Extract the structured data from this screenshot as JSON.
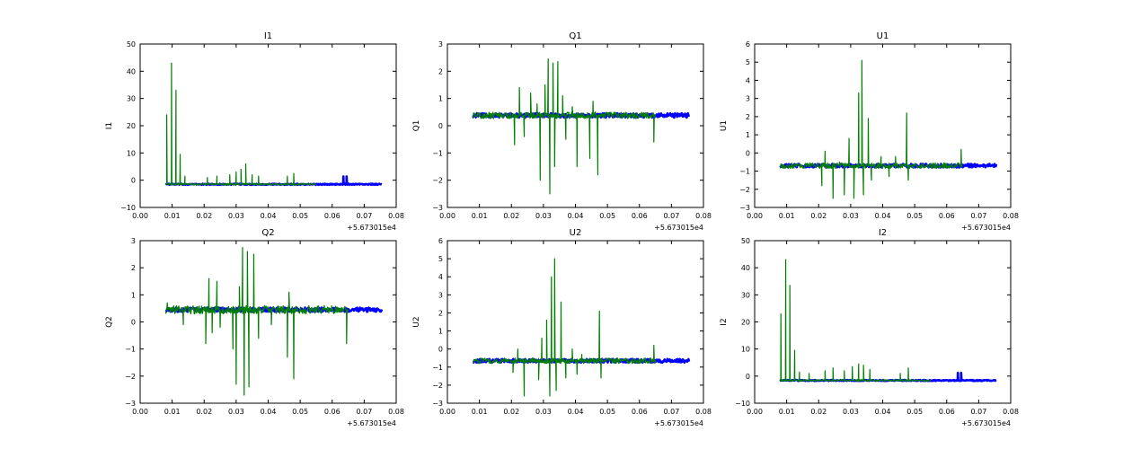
{
  "colors": {
    "blue": "#0000ff",
    "green": "#008000"
  },
  "chart_data": [
    {
      "type": "line",
      "title": "I1",
      "ylabel": "I1",
      "x_offset_label": "+5.673015e4",
      "xlim": [
        0.0,
        0.08
      ],
      "ylim": [
        -10,
        50
      ],
      "xticks": [
        "0.00",
        "0.01",
        "0.02",
        "0.03",
        "0.04",
        "0.05",
        "0.06",
        "0.07",
        "0.08"
      ],
      "yticks": [
        "−10",
        "0",
        "10",
        "20",
        "30",
        "40",
        "50"
      ],
      "series": [
        {
          "color": "blue",
          "base": -1.5,
          "noise": 0.2,
          "spikes": [
            [
              0.0635,
              1.4
            ],
            [
              0.0645,
              1.4
            ]
          ]
        },
        {
          "color": "green",
          "base": -1.5,
          "noise": 0.3,
          "x_end": 0.055,
          "spikes": [
            [
              0.0083,
              24
            ],
            [
              0.0098,
              43
            ],
            [
              0.0112,
              33
            ],
            [
              0.0125,
              9.5
            ],
            [
              0.014,
              1.5
            ],
            [
              0.021,
              1
            ],
            [
              0.024,
              1.5
            ],
            [
              0.028,
              2
            ],
            [
              0.03,
              3
            ],
            [
              0.0315,
              4
            ],
            [
              0.033,
              6
            ],
            [
              0.035,
              2
            ],
            [
              0.037,
              1.5
            ],
            [
              0.046,
              1.5
            ],
            [
              0.048,
              2.5
            ]
          ]
        }
      ]
    },
    {
      "type": "line",
      "title": "Q1",
      "ylabel": "Q1",
      "x_offset_label": "+5.673015e4",
      "xlim": [
        0.0,
        0.08
      ],
      "ylim": [
        -3,
        3
      ],
      "xticks": [
        "0.00",
        "0.01",
        "0.02",
        "0.03",
        "0.04",
        "0.05",
        "0.06",
        "0.07",
        "0.08"
      ],
      "yticks": [
        "−3",
        "−2",
        "−1",
        "0",
        "1",
        "2",
        "3"
      ],
      "series": [
        {
          "color": "blue",
          "base": 0.38,
          "noise": 0.08,
          "spikes": []
        },
        {
          "color": "green",
          "base": 0.38,
          "noise": 0.12,
          "x_end": 0.065,
          "spikes": [
            [
              0.021,
              -0.7
            ],
            [
              0.0225,
              1.4
            ],
            [
              0.024,
              -0.4
            ],
            [
              0.026,
              1.2
            ],
            [
              0.028,
              0.8
            ],
            [
              0.029,
              -2.0
            ],
            [
              0.0305,
              1.5
            ],
            [
              0.0315,
              2.45
            ],
            [
              0.032,
              -2.5
            ],
            [
              0.033,
              2.3
            ],
            [
              0.0335,
              -1.5
            ],
            [
              0.0345,
              2.35
            ],
            [
              0.036,
              1.1
            ],
            [
              0.037,
              -0.5
            ],
            [
              0.039,
              0.7
            ],
            [
              0.0405,
              -1.5
            ],
            [
              0.0445,
              -1.2
            ],
            [
              0.0455,
              0.9
            ],
            [
              0.047,
              -1.8
            ],
            [
              0.0645,
              -0.6
            ]
          ]
        }
      ]
    },
    {
      "type": "line",
      "title": "U1",
      "ylabel": "U1",
      "x_offset_label": "+5.673015e4",
      "xlim": [
        0.0,
        0.08
      ],
      "ylim": [
        -3,
        6
      ],
      "xticks": [
        "0.00",
        "0.01",
        "0.02",
        "0.03",
        "0.04",
        "0.05",
        "0.06",
        "0.07",
        "0.08"
      ],
      "yticks": [
        "−3",
        "−2",
        "−1",
        "0",
        "1",
        "2",
        "3",
        "4",
        "5",
        "6"
      ],
      "series": [
        {
          "color": "blue",
          "base": -0.7,
          "noise": 0.1,
          "spikes": []
        },
        {
          "color": "green",
          "base": -0.7,
          "noise": 0.15,
          "x_end": 0.065,
          "spikes": [
            [
              0.021,
              -1.8
            ],
            [
              0.022,
              0.1
            ],
            [
              0.0245,
              -2.5
            ],
            [
              0.0265,
              -0.5
            ],
            [
              0.028,
              -2.3
            ],
            [
              0.0295,
              0.8
            ],
            [
              0.031,
              -2.5
            ],
            [
              0.0325,
              3.3
            ],
            [
              0.0335,
              5.1
            ],
            [
              0.034,
              -2.3
            ],
            [
              0.0355,
              1.9
            ],
            [
              0.0365,
              -1.5
            ],
            [
              0.0395,
              -0.2
            ],
            [
              0.042,
              -1.3
            ],
            [
              0.044,
              -0.2
            ],
            [
              0.0475,
              2.2
            ],
            [
              0.048,
              -1.5
            ],
            [
              0.0645,
              0.2
            ]
          ]
        }
      ]
    },
    {
      "type": "line",
      "title": "Q2",
      "ylabel": "Q2",
      "x_offset_label": "+5.673015e4",
      "xlim": [
        0.0,
        0.08
      ],
      "ylim": [
        -3,
        3
      ],
      "xticks": [
        "0.00",
        "0.01",
        "0.02",
        "0.03",
        "0.04",
        "0.05",
        "0.06",
        "0.07",
        "0.08"
      ],
      "yticks": [
        "−3",
        "−2",
        "−1",
        "0",
        "1",
        "2",
        "3"
      ],
      "series": [
        {
          "color": "blue",
          "base": 0.45,
          "noise": 0.08,
          "spikes": []
        },
        {
          "color": "green",
          "base": 0.45,
          "noise": 0.15,
          "x_end": 0.065,
          "spikes": [
            [
              0.0085,
              0.7
            ],
            [
              0.0135,
              -0.1
            ],
            [
              0.0205,
              -0.8
            ],
            [
              0.0215,
              1.6
            ],
            [
              0.0225,
              -0.4
            ],
            [
              0.024,
              1.5
            ],
            [
              0.025,
              -0.2
            ],
            [
              0.027,
              0.4
            ],
            [
              0.029,
              -1.0
            ],
            [
              0.03,
              -2.3
            ],
            [
              0.031,
              1.3
            ],
            [
              0.032,
              2.75
            ],
            [
              0.0325,
              -2.7
            ],
            [
              0.0335,
              2.6
            ],
            [
              0.034,
              -2.4
            ],
            [
              0.0355,
              2.5
            ],
            [
              0.037,
              -0.6
            ],
            [
              0.041,
              -0.1
            ],
            [
              0.046,
              -1.3
            ],
            [
              0.0465,
              1.1
            ],
            [
              0.048,
              -2.1
            ],
            [
              0.0645,
              -0.8
            ]
          ]
        }
      ]
    },
    {
      "type": "line",
      "title": "U2",
      "ylabel": "U2",
      "x_offset_label": "+5.673015e4",
      "xlim": [
        0.0,
        0.08
      ],
      "ylim": [
        -3,
        6
      ],
      "xticks": [
        "0.00",
        "0.01",
        "0.02",
        "0.03",
        "0.04",
        "0.05",
        "0.06",
        "0.07",
        "0.08"
      ],
      "yticks": [
        "−3",
        "−2",
        "−1",
        "0",
        "1",
        "2",
        "3",
        "4",
        "5",
        "6"
      ],
      "series": [
        {
          "color": "blue",
          "base": -0.65,
          "noise": 0.1,
          "spikes": []
        },
        {
          "color": "green",
          "base": -0.65,
          "noise": 0.15,
          "x_end": 0.065,
          "spikes": [
            [
              0.0205,
              -1.3
            ],
            [
              0.022,
              0.0
            ],
            [
              0.024,
              -2.6
            ],
            [
              0.0265,
              -0.5
            ],
            [
              0.0285,
              -1.7
            ],
            [
              0.0295,
              0.6
            ],
            [
              0.031,
              1.6
            ],
            [
              0.032,
              -2.6
            ],
            [
              0.0325,
              4.0
            ],
            [
              0.0335,
              5.0
            ],
            [
              0.034,
              -2.3
            ],
            [
              0.0355,
              2.6
            ],
            [
              0.037,
              -1.6
            ],
            [
              0.039,
              0.0
            ],
            [
              0.0405,
              -1.4
            ],
            [
              0.042,
              -0.3
            ],
            [
              0.045,
              -0.6
            ],
            [
              0.0475,
              2.1
            ],
            [
              0.048,
              -1.6
            ],
            [
              0.0645,
              0.2
            ]
          ]
        }
      ]
    },
    {
      "type": "line",
      "title": "I2",
      "ylabel": "I2",
      "x_offset_label": "+5.673015e4",
      "xlim": [
        0.0,
        0.08
      ],
      "ylim": [
        -10,
        50
      ],
      "xticks": [
        "0.00",
        "0.01",
        "0.02",
        "0.03",
        "0.04",
        "0.05",
        "0.06",
        "0.07",
        "0.08"
      ],
      "yticks": [
        "−10",
        "0",
        "10",
        "20",
        "30",
        "40",
        "50"
      ],
      "series": [
        {
          "color": "blue",
          "base": -1.6,
          "noise": 0.2,
          "spikes": [
            [
              0.0635,
              1.2
            ],
            [
              0.0645,
              1.2
            ]
          ]
        },
        {
          "color": "green",
          "base": -1.6,
          "noise": 0.3,
          "x_end": 0.055,
          "spikes": [
            [
              0.0082,
              23
            ],
            [
              0.0097,
              43
            ],
            [
              0.011,
              33.5
            ],
            [
              0.0125,
              9.5
            ],
            [
              0.014,
              1.5
            ],
            [
              0.017,
              1
            ],
            [
              0.022,
              2
            ],
            [
              0.0245,
              3
            ],
            [
              0.028,
              2
            ],
            [
              0.0305,
              3.5
            ],
            [
              0.0325,
              4.5
            ],
            [
              0.034,
              4
            ],
            [
              0.036,
              2.5
            ],
            [
              0.0455,
              1
            ],
            [
              0.048,
              3
            ]
          ]
        }
      ]
    }
  ]
}
